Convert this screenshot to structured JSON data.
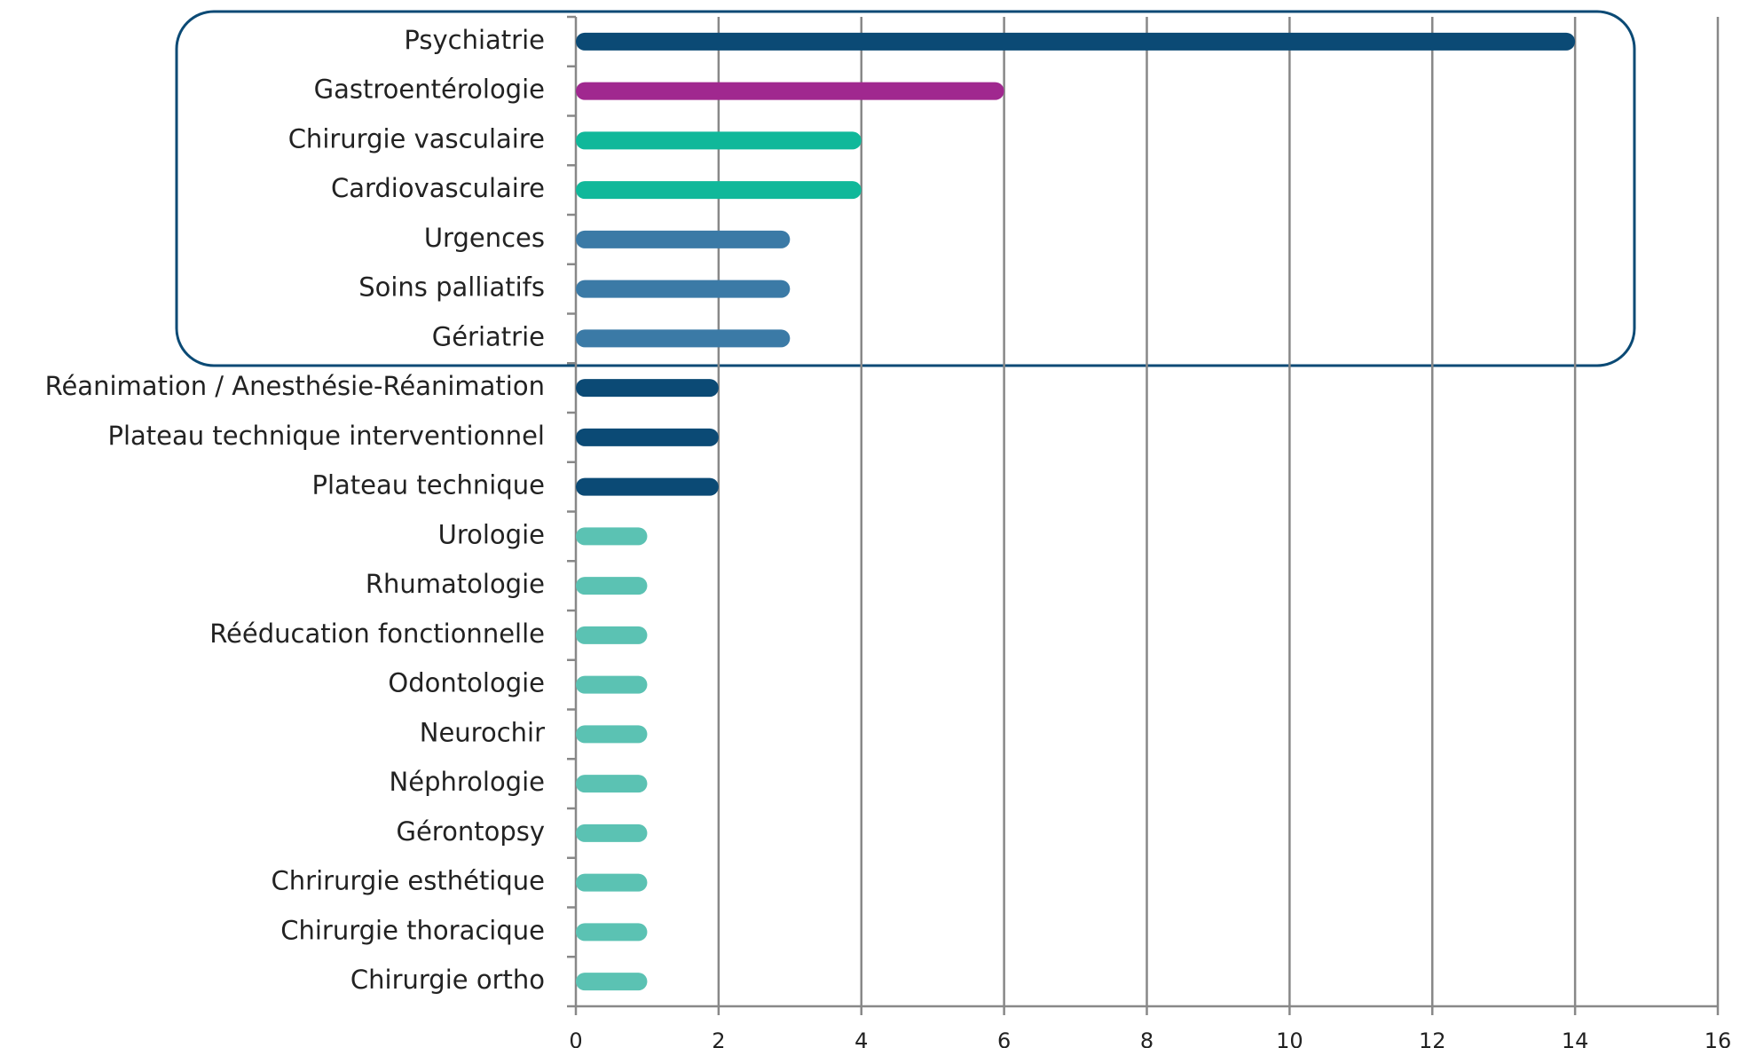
{
  "chart_data": {
    "type": "bar",
    "orientation": "horizontal",
    "categories": [
      "Psychiatrie",
      "Gastroentérologie",
      "Chirurgie vasculaire",
      "Cardiovasculaire",
      "Urgences",
      "Soins palliatifs",
      "Gériatrie",
      "Réanimation / Anesthésie-Réanimation",
      "Plateau technique interventionnel",
      "Plateau technique",
      "Urologie",
      "Rhumatologie",
      "Rééducation fonctionnelle",
      "Odontologie",
      "Neurochir",
      "Néphrologie",
      "Gérontopsy",
      "Chrirurgie esthétique",
      "Chirurgie thoracique",
      "Chirurgie ortho"
    ],
    "values": [
      14,
      6,
      4,
      4,
      3,
      3,
      3,
      2,
      2,
      2,
      1,
      1,
      1,
      1,
      1,
      1,
      1,
      1,
      1,
      1
    ],
    "colors": [
      "#0b4a75",
      "#a0288f",
      "#10b89a",
      "#10b89a",
      "#3b7aa6",
      "#3b7aa6",
      "#3b7aa6",
      "#0b4a75",
      "#0b4a75",
      "#0b4a75",
      "#5bc2b3",
      "#5bc2b3",
      "#5bc2b3",
      "#5bc2b3",
      "#5bc2b3",
      "#5bc2b3",
      "#5bc2b3",
      "#5bc2b3",
      "#5bc2b3",
      "#5bc2b3"
    ],
    "xlim": [
      0,
      16
    ],
    "xticks": [
      0,
      2,
      4,
      6,
      8,
      10,
      12,
      14,
      16
    ],
    "grid": true
  }
}
